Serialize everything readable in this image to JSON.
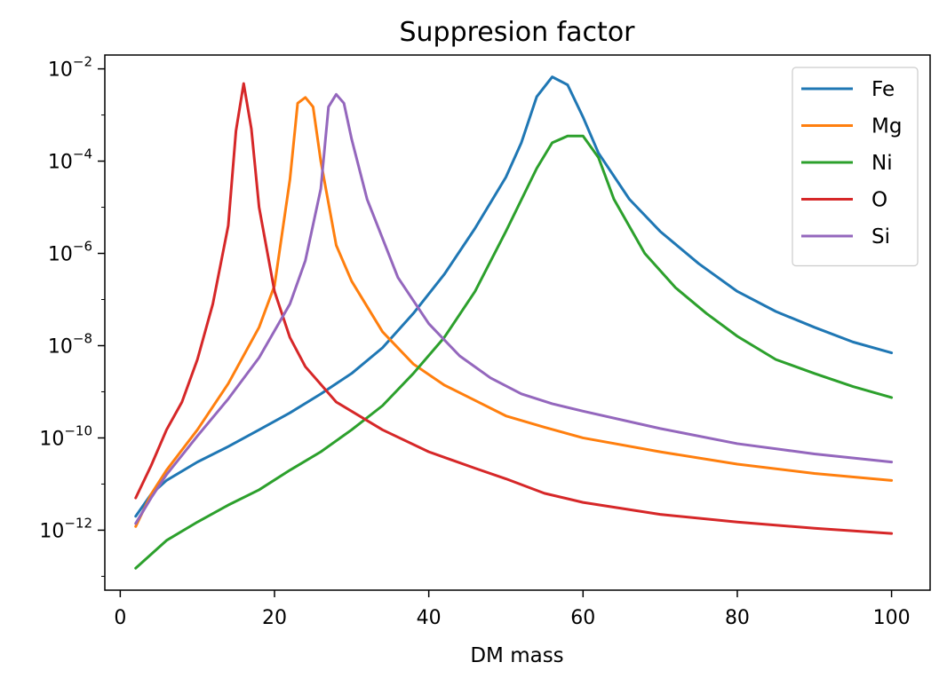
{
  "chart_data": {
    "type": "line",
    "title": "Suppresion factor",
    "xlabel": "DM mass",
    "ylabel": "",
    "xlim": [
      -2,
      105
    ],
    "ylim_log10": [
      -13.3,
      -1.7
    ],
    "yscale": "log",
    "grid": false,
    "legend_position": "top-right",
    "xticks": [
      {
        "value": 0,
        "label": "0"
      },
      {
        "value": 20,
        "label": "20"
      },
      {
        "value": 40,
        "label": "40"
      },
      {
        "value": 60,
        "label": "60"
      },
      {
        "value": 80,
        "label": "80"
      },
      {
        "value": 100,
        "label": "100"
      }
    ],
    "yticks": [
      {
        "exp": -2,
        "base": "10",
        "sup": "−2"
      },
      {
        "exp": -4,
        "base": "10",
        "sup": "−4"
      },
      {
        "exp": -6,
        "base": "10",
        "sup": "−6"
      },
      {
        "exp": -8,
        "base": "10",
        "sup": "−8"
      },
      {
        "exp": -10,
        "base": "10",
        "sup": "−10"
      },
      {
        "exp": -12,
        "base": "10",
        "sup": "−12"
      }
    ],
    "series": [
      {
        "name": "Fe",
        "color": "#1f77b4",
        "x": [
          2,
          4,
          6,
          10,
          14,
          18,
          22,
          26,
          30,
          34,
          38,
          42,
          46,
          50,
          52,
          54,
          56,
          58,
          60,
          62,
          66,
          70,
          75,
          80,
          85,
          90,
          95,
          100
        ],
        "y": [
          2e-12,
          6e-12,
          1.2e-11,
          3e-11,
          6.5e-11,
          1.5e-10,
          3.5e-10,
          9e-10,
          2.5e-09,
          9e-09,
          5e-08,
          3.5e-07,
          3.5e-06,
          4.5e-05,
          0.00025,
          0.0025,
          0.0067,
          0.0045,
          0.0009,
          0.00015,
          1.5e-05,
          3e-06,
          6e-07,
          1.5e-07,
          5.5e-08,
          2.5e-08,
          1.2e-08,
          7e-09
        ]
      },
      {
        "name": "Mg",
        "color": "#ff7f0e",
        "x": [
          2,
          4,
          6,
          10,
          14,
          18,
          20,
          22,
          23,
          24,
          25,
          26,
          28,
          30,
          34,
          38,
          42,
          46,
          50,
          55,
          60,
          70,
          80,
          90,
          100
        ],
        "y": [
          1.2e-12,
          6e-12,
          2e-11,
          1.5e-10,
          1.5e-09,
          2.5e-08,
          2e-07,
          4e-05,
          0.0018,
          0.0024,
          0.0015,
          0.0001,
          1.5e-06,
          2.5e-07,
          2e-08,
          4e-09,
          1.4e-09,
          6.5e-10,
          3e-10,
          1.7e-10,
          1e-10,
          5e-11,
          2.7e-11,
          1.7e-11,
          1.2e-11
        ]
      },
      {
        "name": "Ni",
        "color": "#2ca02c",
        "x": [
          2,
          6,
          10,
          14,
          18,
          22,
          26,
          30,
          34,
          38,
          42,
          46,
          50,
          54,
          56,
          58,
          60,
          62,
          64,
          68,
          72,
          76,
          80,
          85,
          90,
          95,
          100
        ],
        "y": [
          1.5e-13,
          6e-13,
          1.5e-12,
          3.5e-12,
          7.5e-12,
          2e-11,
          5e-11,
          1.5e-10,
          5e-10,
          2.5e-09,
          1.5e-08,
          1.5e-07,
          3e-06,
          7e-05,
          0.00025,
          0.00035,
          0.00035,
          0.00012,
          1.5e-05,
          1e-06,
          1.8e-07,
          5e-08,
          1.6e-08,
          5e-09,
          2.5e-09,
          1.3e-09,
          7.5e-10
        ]
      },
      {
        "name": "O",
        "color": "#d62728",
        "x": [
          2,
          4,
          6,
          8,
          10,
          12,
          14,
          15,
          16,
          17,
          18,
          20,
          22,
          24,
          28,
          34,
          40,
          46,
          50,
          55,
          60,
          70,
          80,
          90,
          100
        ],
        "y": [
          5e-12,
          2.5e-11,
          1.5e-10,
          6e-10,
          5e-09,
          8e-08,
          4e-06,
          0.00045,
          0.0048,
          0.0005,
          1e-05,
          1.5e-07,
          1.5e-08,
          3.5e-09,
          6e-10,
          1.5e-10,
          5e-11,
          2.2e-11,
          1.3e-11,
          6.3e-12,
          4e-12,
          2.2e-12,
          1.5e-12,
          1.1e-12,
          8.5e-13
        ]
      },
      {
        "name": "Si",
        "color": "#9467bd",
        "x": [
          2,
          4,
          6,
          10,
          14,
          18,
          22,
          24,
          26,
          27,
          28,
          29,
          30,
          32,
          36,
          40,
          44,
          48,
          52,
          56,
          60,
          70,
          80,
          90,
          100
        ],
        "y": [
          1.4e-12,
          5e-12,
          1.6e-11,
          1.1e-10,
          7e-10,
          5.5e-09,
          8e-08,
          7e-07,
          2.5e-05,
          0.0015,
          0.0028,
          0.0018,
          0.0003,
          1.5e-05,
          3e-07,
          3e-08,
          6e-09,
          2e-09,
          9e-10,
          5.5e-10,
          3.8e-10,
          1.6e-10,
          7.5e-11,
          4.5e-11,
          3e-11
        ]
      }
    ]
  }
}
